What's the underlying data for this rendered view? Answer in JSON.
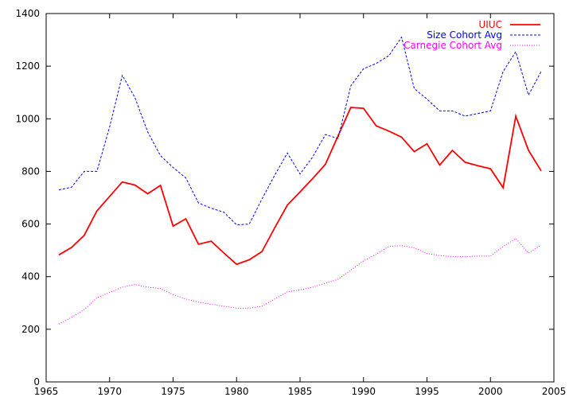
{
  "chart_data": {
    "type": "line",
    "title": "",
    "xlabel": "",
    "ylabel": "",
    "xlim": [
      1965,
      2005
    ],
    "ylim": [
      0,
      1400
    ],
    "xticks": [
      1965,
      1970,
      1975,
      1980,
      1985,
      1990,
      1995,
      2000,
      2005
    ],
    "yticks": [
      0,
      200,
      400,
      600,
      800,
      1000,
      1200,
      1400
    ],
    "grid": false,
    "legend_position": "top-right",
    "x": [
      1966,
      1967,
      1968,
      1969,
      1970,
      1971,
      1972,
      1973,
      1974,
      1975,
      1976,
      1977,
      1978,
      1979,
      1980,
      1981,
      1982,
      1983,
      1984,
      1985,
      1986,
      1987,
      1988,
      1989,
      1990,
      1991,
      1992,
      1993,
      1994,
      1995,
      1996,
      1997,
      1998,
      1999,
      2000,
      2001,
      2002,
      2003,
      2004
    ],
    "series": [
      {
        "name": "UIUC",
        "color": "#ff0000",
        "style": "solid",
        "values": [
          483,
          511,
          557,
          650,
          705,
          760,
          748,
          715,
          747,
          592,
          620,
          523,
          535,
          490,
          447,
          464,
          495,
          585,
          672,
          722,
          773,
          827,
          935,
          1043,
          1040,
          973,
          953,
          930,
          875,
          905,
          824,
          880,
          835,
          822,
          810,
          738,
          1010,
          880,
          802
        ]
      },
      {
        "name": "Size Cohort Avg",
        "color": "#0000ff",
        "style": "dashed",
        "values": [
          730,
          740,
          800,
          800,
          970,
          1165,
          1080,
          950,
          860,
          815,
          775,
          680,
          660,
          645,
          597,
          600,
          695,
          785,
          870,
          790,
          855,
          940,
          925,
          1125,
          1190,
          1210,
          1240,
          1310,
          1115,
          1075,
          1030,
          1030,
          1010,
          1020,
          1030,
          1180,
          1255,
          1090,
          1180
        ]
      },
      {
        "name": "Carnegie Cohort Avg",
        "color": "#ff00ff",
        "style": "dotted",
        "values": [
          220,
          245,
          275,
          320,
          340,
          360,
          370,
          360,
          355,
          332,
          315,
          303,
          295,
          288,
          280,
          280,
          288,
          315,
          342,
          350,
          360,
          375,
          390,
          425,
          460,
          485,
          515,
          518,
          510,
          488,
          480,
          476,
          476,
          478,
          478,
          515,
          545,
          490,
          520
        ]
      }
    ]
  }
}
